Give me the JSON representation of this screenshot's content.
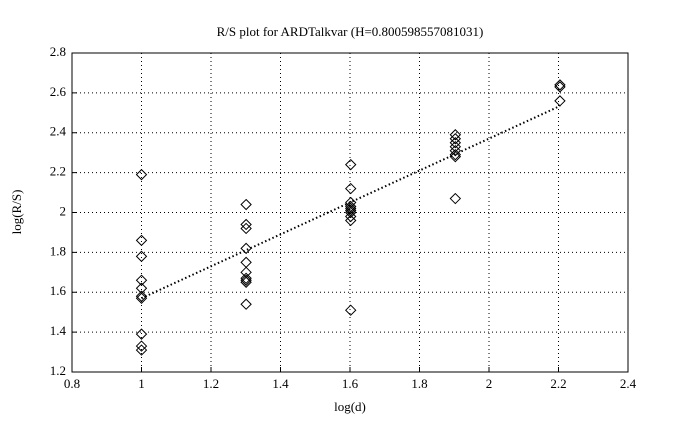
{
  "chart_data": {
    "type": "scatter",
    "title": "R/S plot for ARDTalkvar (H=0.800598557081031)",
    "x_label": "log(d)",
    "y_label": "log(R/S)",
    "xlim": [
      0.8,
      2.4
    ],
    "ylim": [
      1.2,
      2.8
    ],
    "xticks": [
      0.8,
      1,
      1.2,
      1.4,
      1.6,
      1.8,
      2,
      2.2,
      2.4
    ],
    "yticks": [
      1.2,
      1.4,
      1.6,
      1.8,
      2,
      2.2,
      2.4,
      2.6,
      2.8
    ],
    "grid": true,
    "series": [
      {
        "type": "scatter",
        "marker": "diamond",
        "color": "#000000",
        "x": [
          1,
          1,
          1,
          1,
          1,
          1,
          1,
          1,
          1,
          1,
          1.30103,
          1.30103,
          1.30103,
          1.30103,
          1.30103,
          1.30103,
          1.30103,
          1.30103,
          1.30103,
          1.30103,
          1.60206,
          1.60206,
          1.60206,
          1.60206,
          1.60206,
          1.60206,
          1.60206,
          1.60206,
          1.60206,
          1.60206,
          1.90309,
          1.90309,
          1.90309,
          1.90309,
          1.90309,
          1.90309,
          1.90309,
          1.90309,
          2.20412,
          2.20412,
          2.20412
        ],
        "values": [
          2.19,
          1.86,
          1.78,
          1.66,
          1.62,
          1.58,
          1.57,
          1.39,
          1.33,
          1.31,
          2.04,
          1.94,
          1.92,
          1.82,
          1.75,
          1.7,
          1.67,
          1.66,
          1.65,
          1.54,
          2.24,
          2.12,
          2.05,
          2.03,
          2.02,
          2.01,
          2.0,
          1.98,
          1.96,
          1.51,
          2.39,
          2.37,
          2.35,
          2.33,
          2.31,
          2.29,
          2.28,
          2.07,
          2.64,
          2.63,
          2.56
        ]
      },
      {
        "type": "line",
        "dash": "dotted",
        "color": "#000000",
        "x": [
          1,
          2.20412
        ],
        "values": [
          1.57,
          2.534
        ]
      }
    ]
  }
}
